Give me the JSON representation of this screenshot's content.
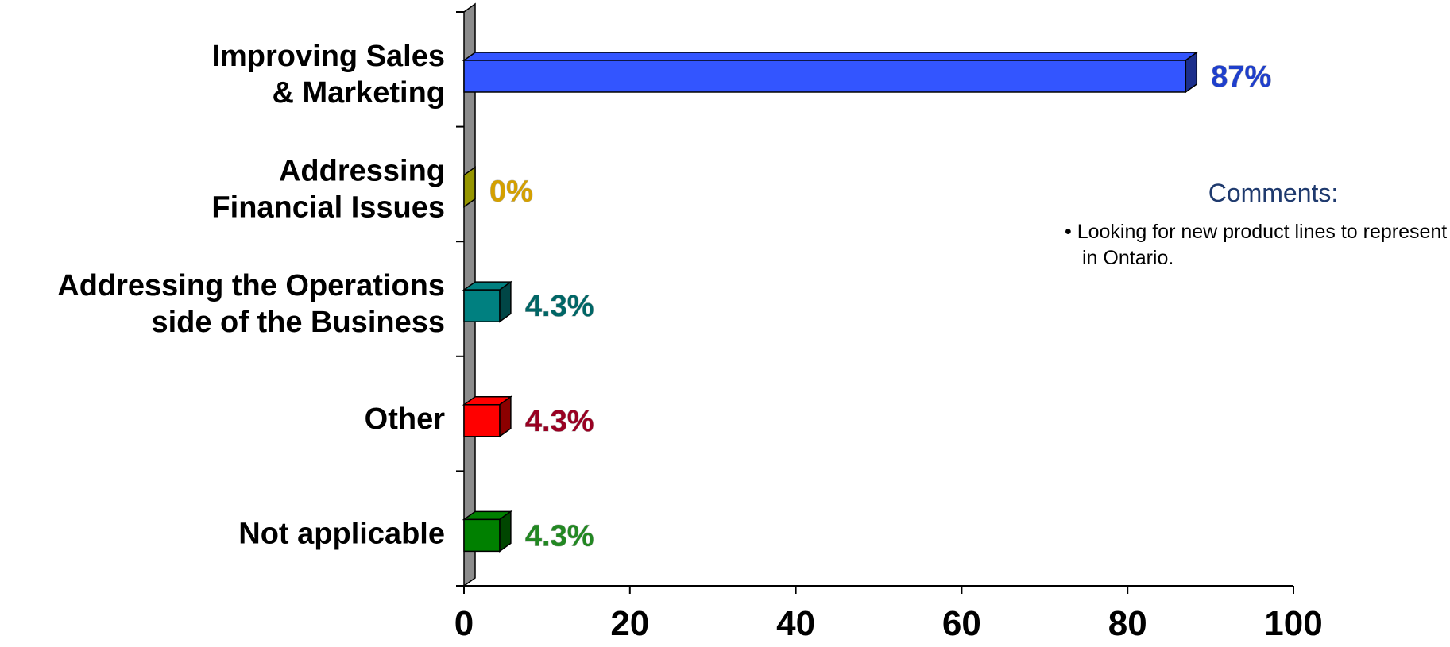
{
  "chart_data": {
    "type": "bar",
    "orientation": "horizontal",
    "style": "3d",
    "categories": [
      [
        "Improving Sales",
        "& Marketing"
      ],
      [
        "Addressing",
        "Financial Issues"
      ],
      [
        "Addressing the Operations",
        "side of the Business"
      ],
      [
        "Other"
      ],
      [
        "Not applicable"
      ]
    ],
    "values": [
      87,
      0,
      4.3,
      4.3,
      4.3
    ],
    "data_labels": [
      "87%",
      "0%",
      "4.3%",
      "4.3%",
      "4.3%"
    ],
    "colors": [
      "#3355ff",
      "#c8c800",
      "#008080",
      "#ff0000",
      "#008000"
    ],
    "label_colors": [
      "#1f3fcc",
      "#d4a000",
      "#006666",
      "#990022",
      "#228822"
    ],
    "xlim": [
      0,
      100
    ],
    "xticks": [
      0,
      20,
      40,
      60,
      80,
      100
    ],
    "grid": false,
    "legend": "none"
  },
  "comments": {
    "title": "Comments:",
    "items": [
      "• Looking for new product lines to represent in Ontario."
    ]
  }
}
